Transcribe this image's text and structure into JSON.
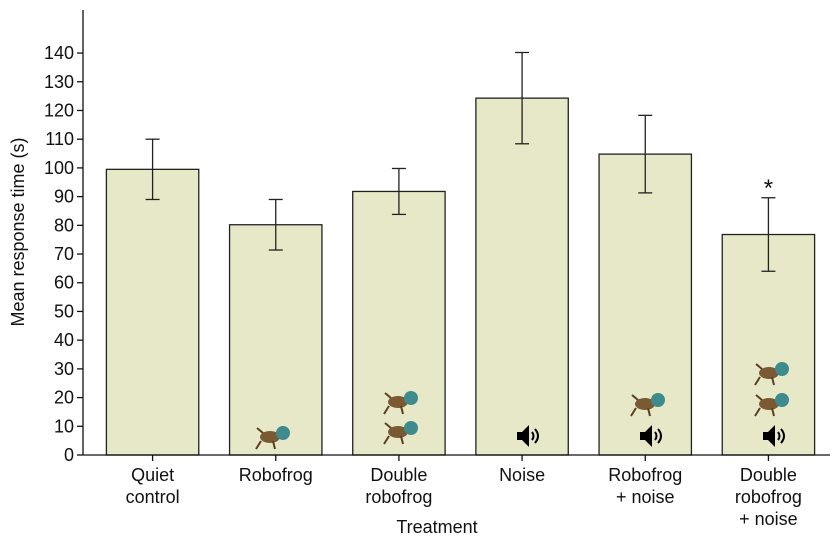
{
  "chart_data": {
    "type": "bar",
    "x_label": "Treatment",
    "y_label": "Mean response time (s)",
    "categories": [
      "Quiet\ncontrol",
      "Robofrog",
      "Double\nrobofrog",
      "Noise",
      "Robofrog\n+ noise",
      "Double\nrobofrog\n+ noise"
    ],
    "values": [
      99.5,
      80.2,
      91.8,
      124.3,
      104.8,
      76.8
    ],
    "errors": [
      10.5,
      8.8,
      8.0,
      15.9,
      13.5,
      12.8
    ],
    "color": "#e6e8c8",
    "annotation": "*",
    "ylim": [
      0,
      155
    ],
    "yticks": [
      0,
      10,
      20,
      30,
      40,
      50,
      60,
      70,
      80,
      90,
      100,
      110,
      120,
      130,
      140
    ],
    "grid": false
  }
}
